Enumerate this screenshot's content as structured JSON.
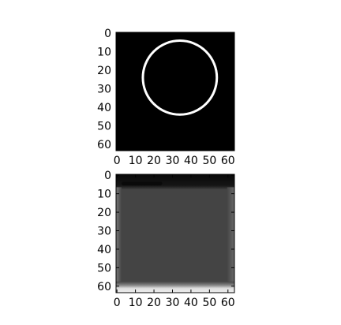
{
  "chart_data": [
    {
      "type": "heatmap",
      "title": "",
      "xlabel": "",
      "ylabel": "",
      "xlim": [
        0,
        63
      ],
      "ylim": [
        0,
        63
      ],
      "y_axis_inverted": true,
      "colormap": "gray",
      "background": "#000000",
      "xticks": [
        0,
        10,
        20,
        30,
        40,
        50,
        60
      ],
      "yticks": [
        0,
        10,
        20,
        30,
        40,
        50,
        60
      ],
      "xtick_labels": [
        "0",
        "10",
        "20",
        "30",
        "40",
        "50",
        "60"
      ],
      "ytick_labels": [
        "0",
        "10",
        "20",
        "30",
        "40",
        "50",
        "60"
      ],
      "shapes": [
        {
          "kind": "circle-outline",
          "center": [
            34.5,
            24.5
          ],
          "radius": 20,
          "color": "#ffffff"
        }
      ]
    },
    {
      "type": "heatmap",
      "title": "",
      "xlabel": "",
      "ylabel": "",
      "xlim": [
        0,
        63
      ],
      "ylim": [
        0,
        63
      ],
      "y_axis_inverted": true,
      "colormap": "gray",
      "background": "#444444",
      "xticks": [
        0,
        10,
        20,
        30,
        40,
        50,
        60
      ],
      "yticks": [
        0,
        10,
        20,
        30,
        40,
        50,
        60
      ],
      "xtick_labels": [
        "0",
        "10",
        "20",
        "30",
        "40",
        "50",
        "60"
      ],
      "ytick_labels": [
        "0",
        "10",
        "20",
        "30",
        "40",
        "50",
        "60"
      ],
      "regions": [
        {
          "kind": "dark-top-band",
          "y": [
            0,
            7
          ],
          "color": "#111111"
        },
        {
          "kind": "light-left-edge",
          "x": [
            0,
            2
          ],
          "color": "#6a6a6a"
        },
        {
          "kind": "light-right-edge",
          "x": [
            60,
            63
          ],
          "color": "#5c5c5c"
        },
        {
          "kind": "bright-bottom-band",
          "y": [
            58,
            63
          ],
          "color": "#e6e6e6"
        }
      ]
    }
  ]
}
